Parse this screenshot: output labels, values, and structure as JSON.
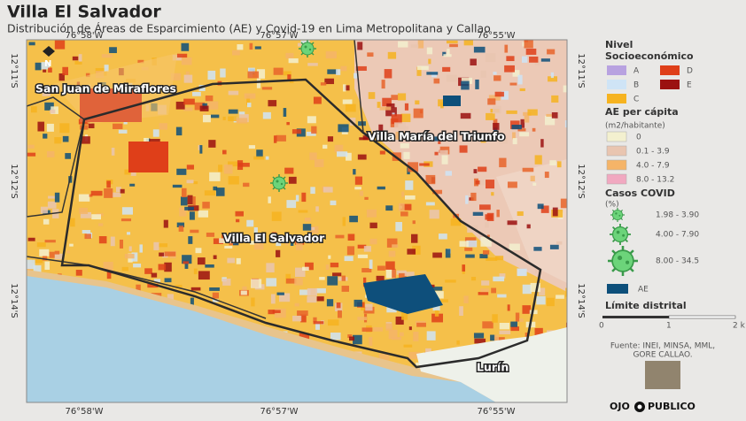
{
  "header": {
    "title": "Villa El Salvador",
    "subtitle": "Distribución de Áreas de Esparcimiento (AE) y Covid-19 en Lima Metropolitana y Callao"
  },
  "map": {
    "top_lon_labels": [
      "76°58'W",
      "76°57'W",
      "76°55'W"
    ],
    "bottom_lon_labels": [
      "76°58'W",
      "76°57'W",
      "76°55'W"
    ],
    "left_lat_labels": [
      "12°11'S",
      "12°12'S",
      "12°14'S"
    ],
    "right_lat_labels": [
      "12°11'S",
      "12°12'S",
      "12°14'S"
    ],
    "places": [
      "San Juan de Miraflores",
      "Villa María del Triunfo",
      "Villa El Salvador",
      "Lurín"
    ],
    "north": "N"
  },
  "legend": {
    "nse": {
      "title_lines": [
        "Nivel",
        "Socioeconómico"
      ],
      "items": [
        {
          "label": "A",
          "color": "#b8a2e0"
        },
        {
          "label": "B",
          "color": "#cfe4f6"
        },
        {
          "label": "C",
          "color": "#f6b320"
        },
        {
          "label": "D",
          "color": "#df3f19"
        },
        {
          "label": "E",
          "color": "#9b1111"
        }
      ]
    },
    "ae_per_capita": {
      "title": "AE per cápita",
      "unit": "(m2/habitante)",
      "items": [
        {
          "label": "0",
          "color": "#f3f0cf"
        },
        {
          "label": "0.1 - 3.9",
          "color": "#e9c5b0"
        },
        {
          "label": "4.0 - 7.9",
          "color": "#f5b468"
        },
        {
          "label": "8.0 - 13.2",
          "color": "#f1a8c0"
        }
      ]
    },
    "covid": {
      "title": "Casos COVID",
      "unit": "(%)",
      "items": [
        {
          "label": "1.98 - 3.90"
        },
        {
          "label": "4.00 - 7.90"
        },
        {
          "label": "8.00 - 34.5"
        }
      ]
    },
    "ae": {
      "label": "AE",
      "color": "#0d4f7a"
    },
    "boundary": {
      "title": "Límite distrital"
    },
    "scale": [
      "0",
      "1",
      "2 k"
    ]
  },
  "footer": {
    "source_lines": [
      "Fuente: INEI, MINSA, MML,",
      "GORE CALLAO."
    ],
    "brand": [
      "OJO",
      "PUBLICO"
    ]
  }
}
